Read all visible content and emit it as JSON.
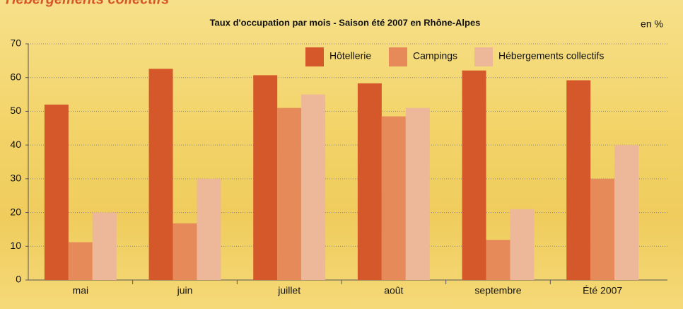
{
  "header": {
    "title": "Hébergements collectifs"
  },
  "chart_data": {
    "type": "bar",
    "title": "Taux d'occupation par mois - Saison été 2007 en Rhône-Alpes",
    "unit_label": "en %",
    "categories": [
      "mai",
      "juin",
      "juillet",
      "août",
      "septembre",
      "Été 2007"
    ],
    "series": [
      {
        "name": "Hôtellerie",
        "color": "#d4582a",
        "values": [
          52,
          62.6,
          60.7,
          58.3,
          62.1,
          59.2
        ]
      },
      {
        "name": "Campings",
        "color": "#e68a5a",
        "values": [
          11.2,
          16.8,
          51,
          48.5,
          11.9,
          30
        ]
      },
      {
        "name": "Hébergements collectifs",
        "color": "#edb89a",
        "values": [
          20,
          30,
          55,
          51,
          21,
          40
        ]
      }
    ],
    "ylim": [
      0,
      70
    ],
    "yticks": [
      0,
      10,
      20,
      30,
      40,
      50,
      60,
      70
    ],
    "grid": true
  }
}
